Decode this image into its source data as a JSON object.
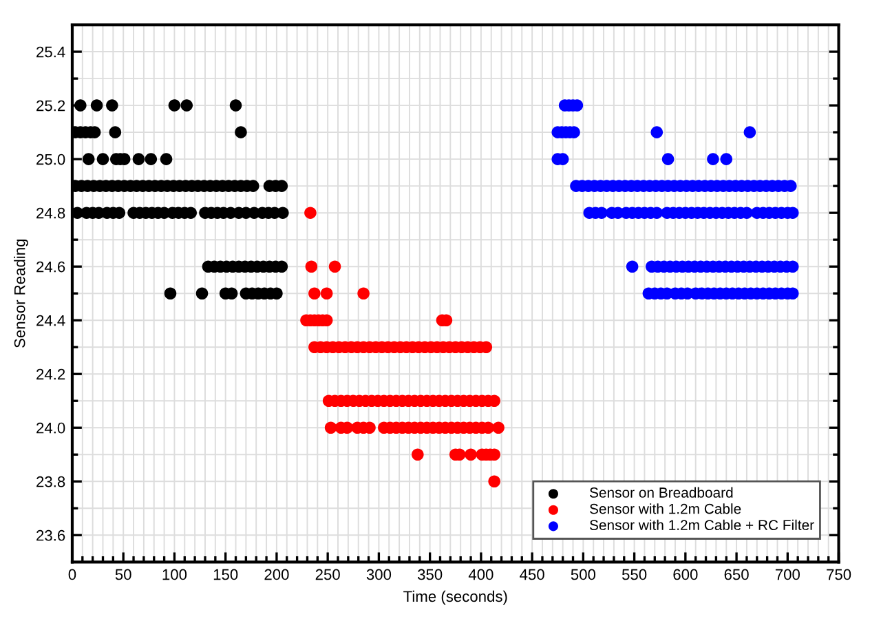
{
  "chart_data": {
    "type": "scatter",
    "xlabel": "Time (seconds)",
    "ylabel": "Sensor Reading",
    "xlim": [
      0,
      750
    ],
    "ylim": [
      23.5,
      25.5
    ],
    "xticks": [
      0,
      50,
      100,
      150,
      200,
      250,
      300,
      350,
      400,
      450,
      500,
      550,
      600,
      650,
      700,
      750,
      {
        "value": 10,
        "label": null
      },
      {
        "value": 20,
        "label": null
      },
      {
        "value": 30,
        "label": null
      },
      {
        "value": 40,
        "label": null
      },
      {
        "value": 60,
        "label": null
      },
      {
        "value": 70,
        "label": null
      },
      {
        "value": 80,
        "label": null
      },
      {
        "value": 90,
        "label": null
      },
      {
        "value": 110,
        "label": null
      },
      {
        "value": 120,
        "label": null
      },
      {
        "value": 130,
        "label": null
      },
      {
        "value": 140,
        "label": null
      },
      {
        "value": 160,
        "label": null
      },
      {
        "value": 170,
        "label": null
      },
      {
        "value": 180,
        "label": null
      },
      {
        "value": 190,
        "label": null
      },
      {
        "value": 210,
        "label": null
      },
      {
        "value": 220,
        "label": null
      },
      {
        "value": 230,
        "label": null
      },
      {
        "value": 240,
        "label": null
      },
      {
        "value": 260,
        "label": null
      },
      {
        "value": 270,
        "label": null
      },
      {
        "value": 280,
        "label": null
      },
      {
        "value": 290,
        "label": null
      },
      {
        "value": 310,
        "label": null
      },
      {
        "value": 320,
        "label": null
      },
      {
        "value": 330,
        "label": null
      },
      {
        "value": 340,
        "label": null
      },
      {
        "value": 360,
        "label": null
      },
      {
        "value": 370,
        "label": null
      },
      {
        "value": 380,
        "label": null
      },
      {
        "value": 390,
        "label": null
      },
      {
        "value": 410,
        "label": null
      },
      {
        "value": 420,
        "label": null
      },
      {
        "value": 430,
        "label": null
      },
      {
        "value": 440,
        "label": null
      },
      {
        "value": 460,
        "label": null
      },
      {
        "value": 470,
        "label": null
      },
      {
        "value": 480,
        "label": null
      },
      {
        "value": 490,
        "label": null
      },
      {
        "value": 510,
        "label": null
      },
      {
        "value": 520,
        "label": null
      },
      {
        "value": 530,
        "label": null
      },
      {
        "value": 540,
        "label": null
      },
      {
        "value": 560,
        "label": null
      },
      {
        "value": 570,
        "label": null
      },
      {
        "value": 580,
        "label": null
      },
      {
        "value": 590,
        "label": null
      },
      {
        "value": 610,
        "label": null
      },
      {
        "value": 620,
        "label": null
      },
      {
        "value": 630,
        "label": null
      },
      {
        "value": 640,
        "label": null
      },
      {
        "value": 660,
        "label": null
      },
      {
        "value": 670,
        "label": null
      },
      {
        "value": 680,
        "label": null
      },
      {
        "value": 690,
        "label": null
      },
      {
        "value": 710,
        "label": null
      },
      {
        "value": 720,
        "label": null
      },
      {
        "value": 730,
        "label": null
      },
      {
        "value": 740,
        "label": null
      }
    ],
    "yticks": [
      23.6,
      23.8,
      {
        "value": 24.0,
        "label": "24.0"
      },
      24.2,
      24.4,
      24.6,
      24.8,
      {
        "value": 25.0,
        "label": "25.0"
      },
      25.2,
      25.4,
      {
        "value": 23.7,
        "label": null
      },
      {
        "value": 23.9,
        "label": null
      },
      {
        "value": 24.1,
        "label": null
      },
      {
        "value": 24.3,
        "label": null
      },
      {
        "value": 24.5,
        "label": null
      },
      {
        "value": 24.7,
        "label": null
      },
      {
        "value": 24.9,
        "label": null
      },
      {
        "value": 25.1,
        "label": null
      },
      {
        "value": 25.3,
        "label": null
      }
    ],
    "grid": true,
    "legend": "bottom right",
    "marker": "circle",
    "series": [
      {
        "name": "Sensor on Breadboard",
        "color": "#000000",
        "x": [
          8,
          24,
          39,
          100,
          112,
          160,
          3,
          8,
          13,
          18,
          22,
          42,
          165,
          16,
          30,
          43,
          47,
          51,
          65,
          77,
          92,
          3,
          9,
          15,
          21,
          27,
          33,
          39,
          45,
          51,
          57,
          63,
          69,
          75,
          81,
          87,
          93,
          99,
          105,
          111,
          117,
          123,
          129,
          135,
          141,
          147,
          153,
          159,
          165,
          171,
          177,
          193,
          199,
          205,
          5,
          14,
          20,
          26,
          34,
          40,
          46,
          60,
          66,
          72,
          78,
          84,
          90,
          98,
          104,
          110,
          116,
          130,
          136,
          142,
          148,
          155,
          163,
          170,
          178,
          186,
          192,
          198,
          206,
          133,
          139,
          145,
          151,
          157,
          163,
          169,
          175,
          181,
          187,
          193,
          199,
          205,
          96,
          127,
          150,
          156,
          170,
          176,
          182,
          188,
          194,
          200
        ],
        "values": [
          25.2,
          25.2,
          25.2,
          25.2,
          25.2,
          25.2,
          25.1,
          25.1,
          25.1,
          25.1,
          25.1,
          25.1,
          25.1,
          25.0,
          25.0,
          25.0,
          25.0,
          25.0,
          25.0,
          25.0,
          25.0,
          24.9,
          24.9,
          24.9,
          24.9,
          24.9,
          24.9,
          24.9,
          24.9,
          24.9,
          24.9,
          24.9,
          24.9,
          24.9,
          24.9,
          24.9,
          24.9,
          24.9,
          24.9,
          24.9,
          24.9,
          24.9,
          24.9,
          24.9,
          24.9,
          24.9,
          24.9,
          24.9,
          24.9,
          24.9,
          24.9,
          24.9,
          24.9,
          24.9,
          24.8,
          24.8,
          24.8,
          24.8,
          24.8,
          24.8,
          24.8,
          24.8,
          24.8,
          24.8,
          24.8,
          24.8,
          24.8,
          24.8,
          24.8,
          24.8,
          24.8,
          24.8,
          24.8,
          24.8,
          24.8,
          24.8,
          24.8,
          24.8,
          24.8,
          24.8,
          24.8,
          24.8,
          24.8,
          24.6,
          24.6,
          24.6,
          24.6,
          24.6,
          24.6,
          24.6,
          24.6,
          24.6,
          24.6,
          24.6,
          24.6,
          24.6,
          24.5,
          24.5,
          24.5,
          24.5,
          24.5,
          24.5,
          24.5,
          24.5,
          24.5,
          24.5
        ]
      },
      {
        "name": "Sensor with 1.2m Cable",
        "color": "#ff0000",
        "x": [
          233,
          234,
          257,
          237,
          249,
          285,
          229,
          233,
          237,
          241,
          245,
          249,
          362,
          366,
          237,
          243,
          249,
          255,
          261,
          267,
          273,
          279,
          285,
          291,
          297,
          303,
          309,
          315,
          321,
          327,
          333,
          339,
          345,
          351,
          357,
          363,
          369,
          375,
          381,
          387,
          393,
          399,
          405,
          251,
          257,
          263,
          269,
          275,
          281,
          287,
          293,
          299,
          305,
          311,
          317,
          323,
          329,
          335,
          341,
          347,
          353,
          359,
          365,
          371,
          377,
          383,
          389,
          395,
          401,
          407,
          413,
          253,
          263,
          269,
          279,
          285,
          291,
          305,
          311,
          317,
          323,
          329,
          335,
          341,
          347,
          353,
          359,
          365,
          371,
          377,
          383,
          389,
          395,
          401,
          407,
          417,
          338,
          375,
          379,
          390,
          401,
          405,
          409,
          413,
          413
        ],
        "values": [
          24.8,
          24.6,
          24.6,
          24.5,
          24.5,
          24.5,
          24.4,
          24.4,
          24.4,
          24.4,
          24.4,
          24.4,
          24.4,
          24.4,
          24.3,
          24.3,
          24.3,
          24.3,
          24.3,
          24.3,
          24.3,
          24.3,
          24.3,
          24.3,
          24.3,
          24.3,
          24.3,
          24.3,
          24.3,
          24.3,
          24.3,
          24.3,
          24.3,
          24.3,
          24.3,
          24.3,
          24.3,
          24.3,
          24.3,
          24.3,
          24.3,
          24.3,
          24.3,
          24.1,
          24.1,
          24.1,
          24.1,
          24.1,
          24.1,
          24.1,
          24.1,
          24.1,
          24.1,
          24.1,
          24.1,
          24.1,
          24.1,
          24.1,
          24.1,
          24.1,
          24.1,
          24.1,
          24.1,
          24.1,
          24.1,
          24.1,
          24.1,
          24.1,
          24.1,
          24.1,
          24.1,
          24.0,
          24.0,
          24.0,
          24.0,
          24.0,
          24.0,
          24.0,
          24.0,
          24.0,
          24.0,
          24.0,
          24.0,
          24.0,
          24.0,
          24.0,
          24.0,
          24.0,
          24.0,
          24.0,
          24.0,
          24.0,
          24.0,
          24.0,
          24.0,
          24.0,
          23.9,
          23.9,
          23.9,
          23.9,
          23.9,
          23.9,
          23.9,
          23.9,
          23.8
        ]
      },
      {
        "name": "Sensor with 1.2m Cable + RC Filter",
        "color": "#0000ff",
        "x": [
          482,
          486,
          490,
          494,
          475,
          479,
          483,
          487,
          491,
          572,
          663,
          475,
          480,
          583,
          627,
          640,
          493,
          499,
          505,
          511,
          517,
          523,
          529,
          535,
          541,
          547,
          553,
          559,
          565,
          571,
          577,
          583,
          589,
          595,
          601,
          607,
          613,
          619,
          625,
          631,
          637,
          643,
          649,
          655,
          661,
          667,
          673,
          679,
          685,
          691,
          697,
          703,
          506,
          512,
          518,
          528,
          534,
          542,
          548,
          554,
          560,
          566,
          572,
          582,
          588,
          594,
          600,
          606,
          612,
          618,
          624,
          630,
          636,
          642,
          648,
          654,
          660,
          670,
          676,
          682,
          688,
          694,
          700,
          705,
          548,
          567,
          573,
          579,
          585,
          591,
          597,
          603,
          609,
          615,
          621,
          627,
          633,
          639,
          645,
          651,
          657,
          663,
          669,
          675,
          681,
          687,
          693,
          699,
          705,
          564,
          570,
          576,
          582,
          590,
          596,
          602,
          610,
          616,
          622,
          628,
          634,
          640,
          646,
          652,
          658,
          664,
          670,
          676,
          682,
          688,
          694,
          700,
          705
        ],
        "values": [
          25.2,
          25.2,
          25.2,
          25.2,
          25.1,
          25.1,
          25.1,
          25.1,
          25.1,
          25.1,
          25.1,
          25.0,
          25.0,
          25.0,
          25.0,
          25.0,
          24.9,
          24.9,
          24.9,
          24.9,
          24.9,
          24.9,
          24.9,
          24.9,
          24.9,
          24.9,
          24.9,
          24.9,
          24.9,
          24.9,
          24.9,
          24.9,
          24.9,
          24.9,
          24.9,
          24.9,
          24.9,
          24.9,
          24.9,
          24.9,
          24.9,
          24.9,
          24.9,
          24.9,
          24.9,
          24.9,
          24.9,
          24.9,
          24.9,
          24.9,
          24.9,
          24.9,
          24.8,
          24.8,
          24.8,
          24.8,
          24.8,
          24.8,
          24.8,
          24.8,
          24.8,
          24.8,
          24.8,
          24.8,
          24.8,
          24.8,
          24.8,
          24.8,
          24.8,
          24.8,
          24.8,
          24.8,
          24.8,
          24.8,
          24.8,
          24.8,
          24.8,
          24.8,
          24.8,
          24.8,
          24.8,
          24.8,
          24.8,
          24.8,
          24.6,
          24.6,
          24.6,
          24.6,
          24.6,
          24.6,
          24.6,
          24.6,
          24.6,
          24.6,
          24.6,
          24.6,
          24.6,
          24.6,
          24.6,
          24.6,
          24.6,
          24.6,
          24.6,
          24.6,
          24.6,
          24.6,
          24.6,
          24.6,
          24.6,
          24.5,
          24.5,
          24.5,
          24.5,
          24.5,
          24.5,
          24.5,
          24.5,
          24.5,
          24.5,
          24.5,
          24.5,
          24.5,
          24.5,
          24.5,
          24.5,
          24.5,
          24.5,
          24.5,
          24.5,
          24.5,
          24.5,
          24.5,
          24.5
        ]
      }
    ]
  }
}
